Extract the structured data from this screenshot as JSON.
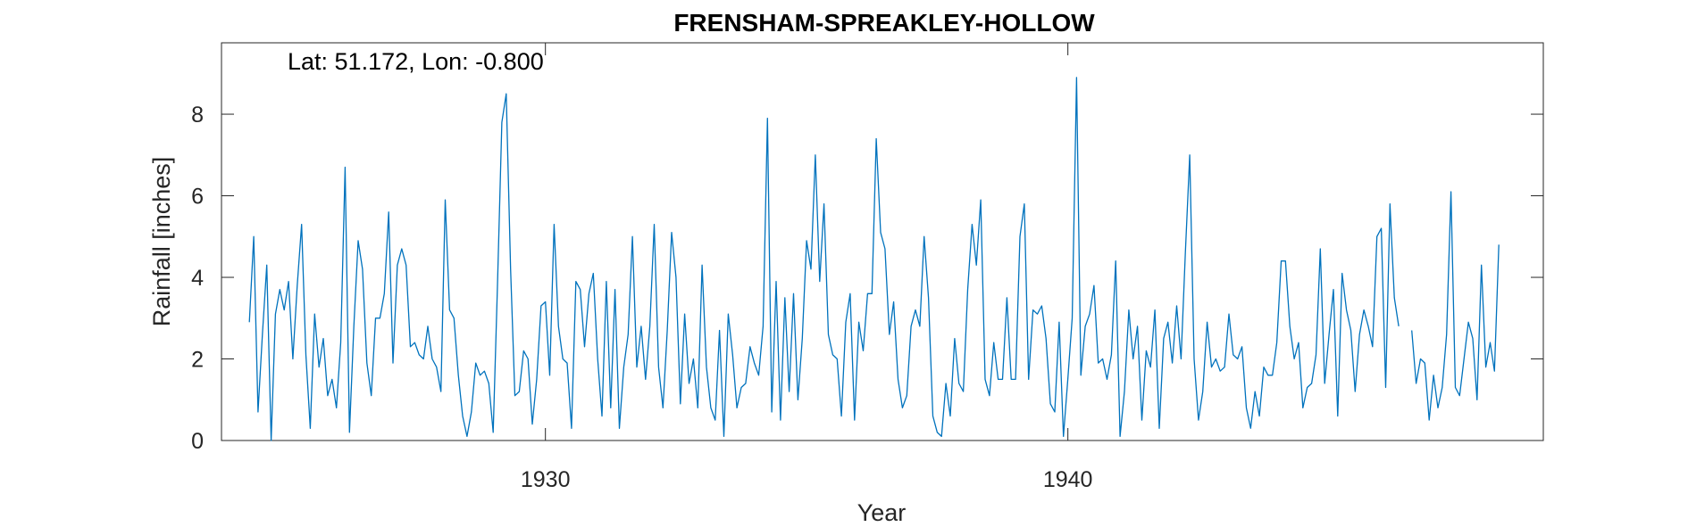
{
  "chart_data": {
    "type": "line",
    "title": "FRENSHAM-SPREAKLEY-HOLLOW",
    "xlabel": "Year",
    "ylabel": "Rainfall [inches]",
    "annotation": "Lat: 51.172, Lon: -0.800",
    "xlim": [
      1923.8,
      1949.1
    ],
    "ylim": [
      0,
      9.75
    ],
    "xticks": [
      {
        "value": 1930,
        "label": "1930"
      },
      {
        "value": 1940,
        "label": "1940"
      }
    ],
    "yticks": [
      {
        "value": 0,
        "label": "0"
      },
      {
        "value": 2,
        "label": "2"
      },
      {
        "value": 4,
        "label": "4"
      },
      {
        "value": 6,
        "label": "6"
      },
      {
        "value": 8,
        "label": "8"
      }
    ],
    "grid": false,
    "line_color": "#0072BD",
    "x_start_year": 1924.333,
    "x_step_years": 0.08333,
    "series": [
      {
        "values": [
          2.9,
          5.0,
          0.7,
          2.6,
          4.3,
          0.0,
          3.1,
          3.7,
          3.2,
          3.9,
          2.0,
          3.8,
          5.3,
          2.1,
          0.3,
          3.1,
          1.8,
          2.5,
          1.1,
          1.5,
          0.8,
          2.4,
          6.7,
          0.2,
          2.8,
          4.9,
          4.2,
          1.9,
          1.1,
          3.0,
          3.0,
          3.6,
          5.6,
          1.9,
          4.3,
          4.7,
          4.3,
          2.3,
          2.4,
          2.1,
          2.0,
          2.8,
          2.0,
          1.8,
          1.2,
          5.9,
          3.2,
          3.0,
          1.6,
          0.6,
          0.1,
          0.7,
          1.9,
          1.6,
          1.7,
          1.4,
          0.2,
          3.8,
          7.8,
          8.5,
          4.2,
          1.1,
          1.2,
          2.2,
          2.0,
          0.4,
          1.5,
          3.3,
          3.4,
          1.6,
          5.3,
          2.8,
          2.0,
          1.9,
          0.3,
          3.9,
          3.7,
          2.3,
          3.6,
          4.1,
          2.0,
          0.6,
          3.9,
          0.8,
          3.7,
          0.3,
          1.8,
          2.6,
          5.0,
          1.8,
          2.8,
          1.5,
          2.8,
          5.3,
          1.8,
          0.8,
          2.7,
          5.1,
          4.0,
          0.9,
          3.1,
          1.4,
          2.0,
          0.8,
          4.3,
          1.8,
          0.8,
          0.5,
          2.7,
          0.1,
          3.1,
          2.1,
          0.8,
          1.3,
          1.4,
          2.3,
          1.9,
          1.6,
          2.8,
          7.9,
          0.7,
          3.9,
          0.5,
          3.5,
          1.2,
          3.6,
          1.0,
          2.5,
          4.9,
          4.2,
          7.0,
          3.9,
          5.8,
          2.6,
          2.1,
          2.0,
          0.6,
          2.9,
          3.6,
          0.5,
          2.9,
          2.2,
          3.6,
          3.6,
          7.4,
          5.1,
          4.7,
          2.6,
          3.4,
          1.5,
          0.8,
          1.1,
          2.8,
          3.2,
          2.8,
          5.0,
          3.5,
          0.6,
          0.2,
          0.1,
          1.4,
          0.6,
          2.5,
          1.4,
          1.2,
          3.7,
          5.3,
          4.3,
          5.9,
          1.5,
          1.1,
          2.4,
          1.5,
          1.5,
          3.5,
          1.5,
          1.5,
          5.0,
          5.8,
          1.5,
          3.2,
          3.1,
          3.3,
          2.5,
          0.9,
          0.7,
          2.9,
          0.1,
          1.5,
          3.0,
          8.9,
          1.6,
          2.8,
          3.1,
          3.8,
          1.9,
          2.0,
          1.5,
          2.1,
          4.4,
          0.1,
          1.2,
          3.2,
          2.0,
          2.8,
          0.5,
          2.2,
          1.8,
          3.2,
          0.3,
          2.5,
          2.9,
          1.9,
          3.3,
          2.0,
          4.6,
          7.0,
          2.0,
          0.5,
          1.2,
          2.9,
          1.8,
          2.0,
          1.7,
          1.8,
          3.1,
          2.1,
          2.0,
          2.3,
          0.8,
          0.3,
          1.2,
          0.6,
          1.8,
          1.6,
          1.6,
          2.4,
          4.4,
          4.4,
          2.8,
          2.0,
          2.4,
          0.8,
          1.3,
          1.4,
          2.1,
          4.7,
          1.4,
          2.6,
          3.7,
          0.6,
          4.1,
          3.2,
          2.7,
          1.2,
          2.6,
          3.2,
          2.8,
          2.3,
          5.0,
          5.2,
          1.3,
          5.8,
          3.5,
          2.8,
          null,
          null,
          2.7,
          1.4,
          2.0,
          1.9,
          0.5,
          1.6,
          0.8,
          1.3,
          2.6,
          6.1,
          1.3,
          1.1,
          2.0,
          2.9,
          2.5,
          1.0,
          4.3,
          1.8,
          2.4,
          1.7,
          4.8
        ]
      }
    ]
  }
}
